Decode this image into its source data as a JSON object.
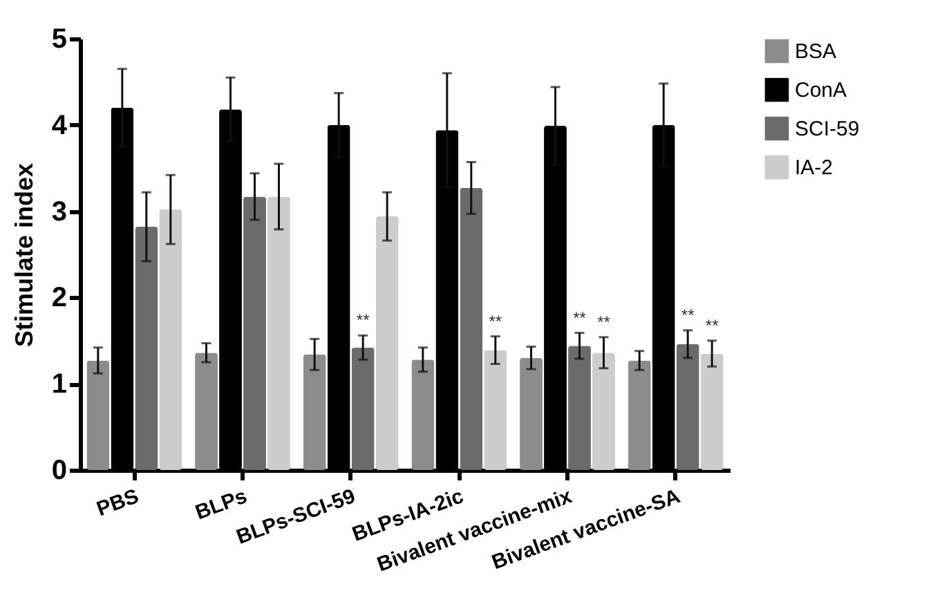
{
  "chart_data": {
    "type": "bar",
    "ylabel": "Stimulate index",
    "categories": [
      "PBS",
      "BLPs",
      "BLPs-SCI-59",
      "BLPs-IA-2ic",
      "Bivalent vaccine-mix",
      "Bivalent vaccine-SA"
    ],
    "series": [
      {
        "name": "BSA",
        "color": "#8c8c8c",
        "values": [
          1.27,
          1.36,
          1.34,
          1.28,
          1.3,
          1.27
        ],
        "errors": [
          0.15,
          0.11,
          0.18,
          0.14,
          0.13,
          0.11
        ]
      },
      {
        "name": "ConA",
        "color": "#000000",
        "values": [
          4.2,
          4.18,
          4.0,
          3.94,
          3.99,
          4.0
        ],
        "errors": [
          0.45,
          0.37,
          0.37,
          0.66,
          0.45,
          0.48
        ]
      },
      {
        "name": "SCI-59",
        "color": "#6b6b6b",
        "values": [
          2.82,
          3.17,
          1.42,
          3.27,
          1.44,
          1.46
        ],
        "errors": [
          0.4,
          0.27,
          0.14,
          0.3,
          0.15,
          0.16
        ]
      },
      {
        "name": "IA-2",
        "color": "#cccccc",
        "values": [
          3.02,
          3.17,
          2.94,
          1.39,
          1.36,
          1.35
        ],
        "errors": [
          0.4,
          0.38,
          0.28,
          0.16,
          0.18,
          0.15
        ]
      }
    ],
    "annotations": [
      {
        "text": "**",
        "x": "BLPs-SCI-59",
        "y": 1.42
      },
      {
        "text": "**",
        "x": "BLPs-IA-2ic",
        "y": 1.39
      },
      {
        "text": "**",
        "x": "Bivalent vaccine-mix",
        "y": 1.44
      },
      {
        "text": "**",
        "x": "Bivalent vaccine-mix",
        "y": 1.36
      },
      {
        "text": "**",
        "x": "Bivalent vaccine-SA",
        "y": 1.46
      },
      {
        "text": "**",
        "x": "Bivalent vaccine-SA",
        "y": 1.35
      }
    ],
    "ylim": [
      0,
      5
    ],
    "yticks": [
      0,
      1,
      2,
      3,
      4,
      5
    ],
    "grid": false,
    "legend": "top right"
  }
}
